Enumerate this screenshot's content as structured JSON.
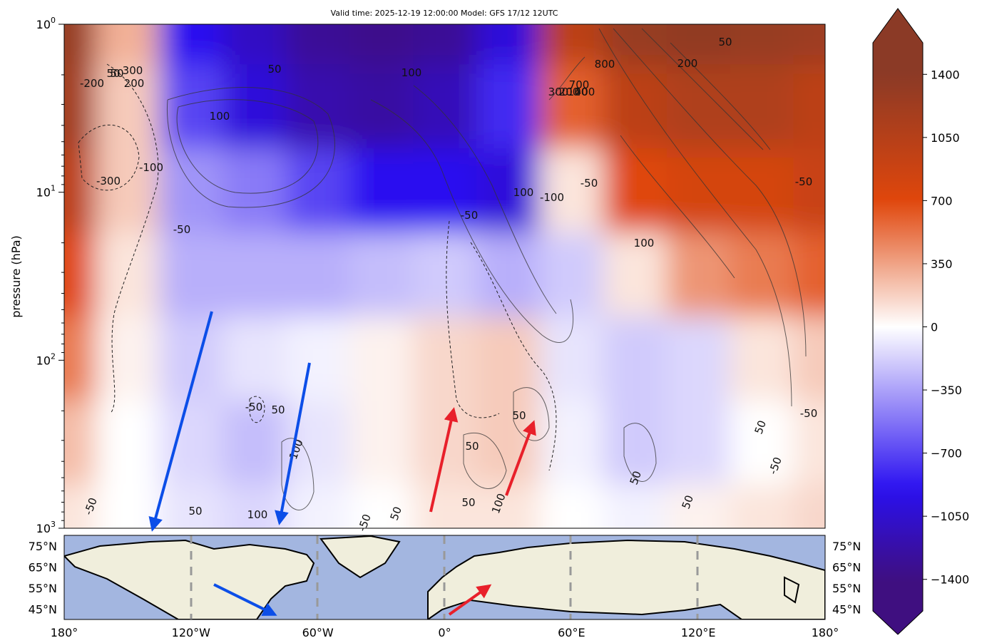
{
  "header": {
    "title": "Valid time: 2025-12-19 12:00:00 Model: GFS 17/12 12UTC"
  },
  "colors": {
    "positive_max": "#8b3a26",
    "positive_mid": "#e0460c",
    "neutral": "#ffffff",
    "negative_mid": "#2a10f0",
    "negative_max": "#3f0f80",
    "ocean": "#a3b6e0",
    "land": "#f0eedc",
    "arrow_blue": "#0c4ee8",
    "arrow_red": "#e8202a"
  },
  "chart_data": [
    {
      "type": "heatmap",
      "title": "",
      "xlabel": "",
      "ylabel": "pressure (hPa)",
      "xlim": [
        -180,
        180
      ],
      "ylim": [
        1000,
        1
      ],
      "yscale": "log",
      "y_ticks": [
        {
          "base": "10",
          "exp": "0"
        },
        {
          "base": "10",
          "exp": "1"
        },
        {
          "base": "10",
          "exp": "2"
        },
        {
          "base": "10",
          "exp": "3"
        }
      ],
      "x": [
        -180,
        -150,
        -120,
        -90,
        -60,
        -30,
        0,
        30,
        60,
        90,
        120,
        150,
        180
      ],
      "y": [
        1,
        3,
        10,
        30,
        100,
        300,
        1000
      ],
      "z": [
        [
          1300,
          300,
          -900,
          -1100,
          -1300,
          -1350,
          -1300,
          -1000,
          1000,
          1300,
          1350,
          1300,
          1250
        ],
        [
          1200,
          200,
          -700,
          -1000,
          -1200,
          -1250,
          -1150,
          -800,
          600,
          1000,
          1100,
          1100,
          1000
        ],
        [
          1000,
          200,
          -400,
          -500,
          -700,
          -900,
          -900,
          -1000,
          100,
          700,
          800,
          800,
          900
        ],
        [
          700,
          100,
          -300,
          -300,
          -300,
          -250,
          -200,
          -300,
          -200,
          100,
          400,
          500,
          600
        ],
        [
          500,
          50,
          -200,
          -100,
          -50,
          50,
          150,
          200,
          -100,
          -200,
          -150,
          100,
          200
        ],
        [
          250,
          0,
          -150,
          -250,
          -100,
          50,
          150,
          200,
          -50,
          -200,
          -150,
          0,
          100
        ],
        [
          100,
          0,
          -100,
          -150,
          -50,
          0,
          100,
          100,
          0,
          -50,
          50,
          100,
          150
        ]
      ],
      "contour_labels": [
        "-200",
        "50",
        "300",
        "200",
        "-300",
        "-100",
        "100",
        "50",
        "100",
        "-50",
        "50",
        "-100",
        "100",
        "-50",
        "800",
        "700",
        "300",
        "200",
        "100",
        "400",
        "50",
        "200",
        "-50",
        "100",
        "-50",
        "-50",
        "50",
        "100",
        "100",
        "50",
        "50",
        "100",
        "50",
        "-50",
        "-50",
        "50",
        "50",
        "-50",
        "50",
        "50",
        "-50",
        "50"
      ],
      "colorbar": {
        "ticks": [
          1400,
          1050,
          700,
          350,
          0,
          -350,
          -700,
          -1050,
          -1400
        ],
        "tick_labels": [
          "1400",
          "1050",
          "700",
          "350",
          "0",
          "−350",
          "−700",
          "−1050",
          "−1400"
        ],
        "extend": "both"
      }
    },
    {
      "type": "map",
      "xlim": [
        -180,
        180
      ],
      "ylim": [
        40,
        80
      ],
      "lon_ticks": [
        -180,
        -120,
        -60,
        0,
        60,
        120,
        180
      ],
      "lon_labels": [
        "180°",
        "120°W",
        "60°W",
        "0°",
        "60°E",
        "120°E",
        "180°"
      ],
      "lat_ticks": [
        75,
        65,
        55,
        45
      ],
      "lat_labels": [
        "75°N",
        "65°N",
        "55°N",
        "45°N"
      ],
      "gridlines": "dashed meridians every 60°"
    }
  ]
}
